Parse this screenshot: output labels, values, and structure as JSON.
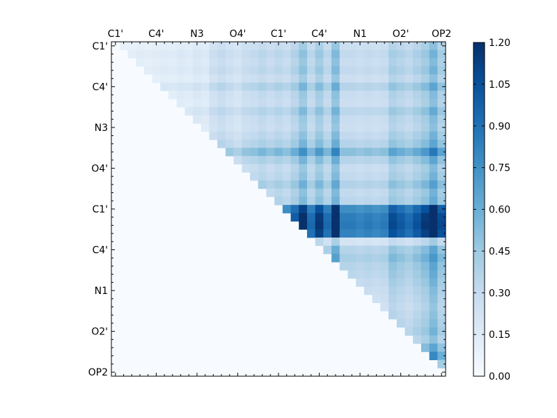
{
  "chart_data": {
    "type": "heatmap",
    "title": "",
    "xlabel": "",
    "ylabel": "",
    "n": 41,
    "x_tick_labels": [
      "C1'",
      "C4'",
      "N3",
      "O4'",
      "C1'",
      "C4'",
      "N1",
      "O2'",
      "OP2"
    ],
    "y_tick_labels": [
      "C1'",
      "C4'",
      "N3",
      "O4'",
      "C1'",
      "C4'",
      "N1",
      "O2'",
      "OP2"
    ],
    "label_every": 5,
    "value_range": [
      0.0,
      1.2
    ],
    "colormap": "Blues",
    "colorbar": {
      "tick_values": [
        0.0,
        0.15,
        0.3,
        0.45,
        0.6,
        0.75,
        0.9,
        1.05,
        1.2
      ],
      "tick_labels": [
        "0.00",
        "0.15",
        "0.30",
        "0.45",
        "0.60",
        "0.75",
        "0.90",
        "1.05",
        "1.20"
      ]
    },
    "lower_triangle_value": 0.0,
    "row_profiles": [
      0.1,
      0.15,
      0.12,
      0.15,
      0.1,
      0.2,
      0.12,
      0.1,
      0.18,
      0.12,
      0.1,
      0.15,
      0.2,
      0.35,
      0.2,
      0.12,
      0.15,
      0.22,
      0.15,
      0.18,
      0.62,
      0.7,
      0.72,
      0.68,
      0.05,
      0.2,
      0.25,
      0.2,
      0.18,
      0.15,
      0.12,
      0.1,
      0.08,
      0.1,
      0.12,
      0.15,
      0.1,
      0.2,
      0.3,
      0.15,
      0.0
    ],
    "col_profiles": [
      0.02,
      0.05,
      0.05,
      0.08,
      0.06,
      0.08,
      0.1,
      0.08,
      0.12,
      0.1,
      0.15,
      0.12,
      0.25,
      0.3,
      0.25,
      0.2,
      0.28,
      0.3,
      0.35,
      0.3,
      0.35,
      0.3,
      0.4,
      0.55,
      0.35,
      0.5,
      0.35,
      0.6,
      0.3,
      0.3,
      0.28,
      0.3,
      0.28,
      0.3,
      0.45,
      0.4,
      0.35,
      0.42,
      0.5,
      0.65,
      0.45
    ]
  }
}
